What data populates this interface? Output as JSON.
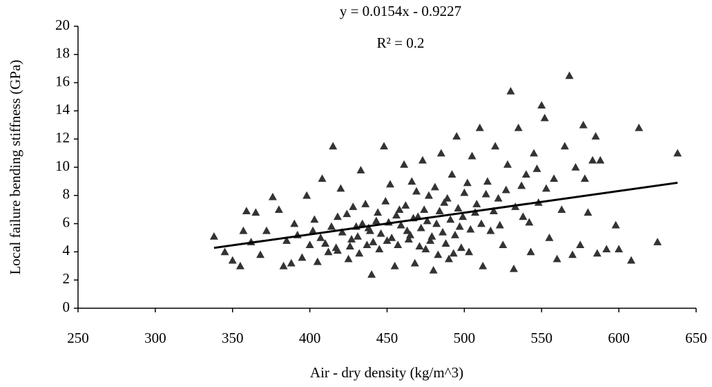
{
  "chart_data": {
    "type": "scatter",
    "x_label": "Air - dry density (kg/m^3)",
    "y_label": "Local failure bending stiffness (GPa)",
    "annotations": [
      "y = 0.0154x - 0.9227",
      "R² = 0.2"
    ],
    "color": "#333333",
    "xlim": [
      250,
      650
    ],
    "xticks": [
      250,
      300,
      350,
      400,
      450,
      500,
      550,
      600,
      650
    ],
    "ylim": [
      0,
      20
    ],
    "yticks": [
      0,
      2,
      4,
      6,
      8,
      10,
      12,
      14,
      16,
      18,
      20
    ],
    "x": [
      338,
      345,
      350,
      355,
      357,
      359,
      362,
      365,
      368,
      372,
      376,
      380,
      383,
      388,
      390,
      395,
      398,
      402,
      405,
      408,
      412,
      415,
      418,
      420,
      425,
      428,
      430,
      433,
      437,
      440,
      443,
      448,
      450,
      452,
      455,
      458,
      461,
      463,
      466,
      468,
      470,
      473,
      475,
      477,
      480,
      482,
      485,
      487,
      490,
      492,
      495,
      497,
      500,
      503,
      505,
      507,
      510,
      512,
      515,
      517,
      520,
      522,
      525,
      528,
      530,
      532,
      535,
      538,
      540,
      543,
      545,
      548,
      550,
      552,
      555,
      558,
      560,
      563,
      565,
      568,
      570,
      572,
      575,
      577,
      578,
      580,
      583,
      585,
      586,
      588,
      592,
      598,
      600,
      608,
      613,
      625,
      638,
      385,
      392,
      400,
      403,
      407,
      410,
      414,
      417,
      421,
      424,
      427,
      431,
      434,
      436,
      439,
      441,
      444,
      446,
      449,
      451,
      453,
      456,
      459,
      462,
      464,
      467,
      469,
      472,
      474,
      476,
      479,
      481,
      484,
      486,
      489,
      491,
      494,
      496,
      499,
      502,
      504,
      508,
      511,
      514,
      519,
      523,
      527,
      533,
      537,
      542,
      547,
      553,
      418,
      426,
      432,
      438,
      445,
      457,
      465,
      471,
      478,
      483,
      488,
      493,
      498
    ],
    "values": [
      5.1,
      4.0,
      3.4,
      3.0,
      5.5,
      6.9,
      4.7,
      6.8,
      3.8,
      5.5,
      7.9,
      7.0,
      3.0,
      3.2,
      6.0,
      3.6,
      8.0,
      5.5,
      3.3,
      9.2,
      4.0,
      11.5,
      6.5,
      8.5,
      3.5,
      7.2,
      5.8,
      9.8,
      4.5,
      2.4,
      6.2,
      11.5,
      4.8,
      8.8,
      3.0,
      7.0,
      10.2,
      5.5,
      9.0,
      3.2,
      6.5,
      10.5,
      4.2,
      8.0,
      2.7,
      6.0,
      11.0,
      7.5,
      3.5,
      9.5,
      12.2,
      5.8,
      8.2,
      4.0,
      10.8,
      6.8,
      12.8,
      3.0,
      9.0,
      5.5,
      11.5,
      7.8,
      4.5,
      10.2,
      15.4,
      2.8,
      12.8,
      6.5,
      9.5,
      4.0,
      11.0,
      7.5,
      14.4,
      13.5,
      5.0,
      9.2,
      3.5,
      7.0,
      11.5,
      16.5,
      3.8,
      10.0,
      4.5,
      13.0,
      9.2,
      6.8,
      10.5,
      12.2,
      3.9,
      10.5,
      4.2,
      5.9,
      4.2,
      3.4,
      12.8,
      4.7,
      11.0,
      4.8,
      5.2,
      4.5,
      6.3,
      5.0,
      4.6,
      5.8,
      4.3,
      5.4,
      6.7,
      4.9,
      5.1,
      6.0,
      7.4,
      5.5,
      4.7,
      6.8,
      5.3,
      7.6,
      6.1,
      5.0,
      6.6,
      5.9,
      7.3,
      4.9,
      6.4,
      8.3,
      5.7,
      7.0,
      6.2,
      5.1,
      8.6,
      6.9,
      5.4,
      7.8,
      6.3,
      5.2,
      7.1,
      6.5,
      8.9,
      5.6,
      7.4,
      6.0,
      8.1,
      6.9,
      5.9,
      8.4,
      7.2,
      8.7,
      6.1,
      9.9,
      8.5,
      4.1,
      4.4,
      3.9,
      5.7,
      4.2,
      4.5,
      5.2,
      4.4,
      4.8,
      3.8,
      4.6,
      3.9,
      4.3
    ],
    "trendline": {
      "color": "#000000",
      "x": [
        338,
        638
      ],
      "values": [
        4.28,
        8.9
      ]
    }
  }
}
